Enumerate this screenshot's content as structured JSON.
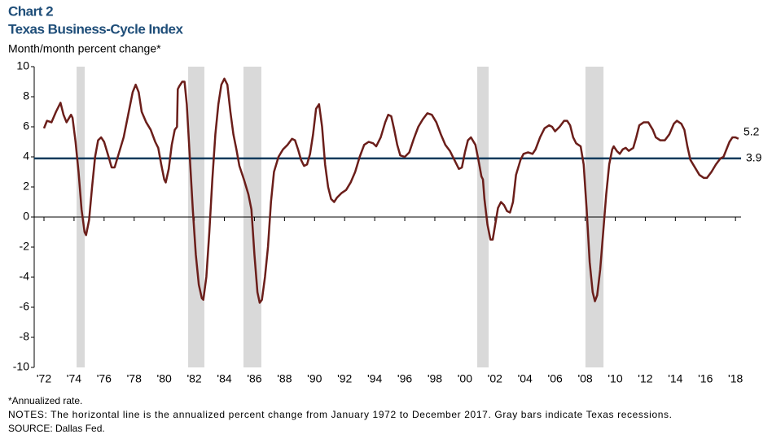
{
  "chart_data": {
    "type": "line",
    "title": "Chart 2",
    "subtitle": "Texas Business-Cycle Index",
    "y_label": "Month/month  percent change*",
    "notes": [
      "*Annualized rate.",
      "NOTES: The horizontal line is the annualized percent change from January 1972 to December 2017. Gray bars indicate Texas recessions.",
      "SOURCE: Dallas Fed."
    ],
    "xlim": [
      1971.35,
      2018.37
    ],
    "ylim": [
      -10,
      10
    ],
    "yticks": [
      -10,
      -8,
      -6,
      -4,
      -2,
      0,
      2,
      4,
      6,
      8,
      10
    ],
    "xticks": [
      {
        "value": 1972,
        "label": "'72"
      },
      {
        "value": 1974,
        "label": "'74"
      },
      {
        "value": 1976,
        "label": "'76"
      },
      {
        "value": 1978,
        "label": "'78"
      },
      {
        "value": 1980,
        "label": "'80"
      },
      {
        "value": 1982,
        "label": "'82"
      },
      {
        "value": 1984,
        "label": "'84"
      },
      {
        "value": 1986,
        "label": "'86"
      },
      {
        "value": 1988,
        "label": "'88"
      },
      {
        "value": 1990,
        "label": "'90"
      },
      {
        "value": 1992,
        "label": "'92"
      },
      {
        "value": 1994,
        "label": "'94"
      },
      {
        "value": 1996,
        "label": "'96"
      },
      {
        "value": 1998,
        "label": "'98"
      },
      {
        "value": 2000,
        "label": "'00"
      },
      {
        "value": 2002,
        "label": "'02"
      },
      {
        "value": 2004,
        "label": "'04"
      },
      {
        "value": 2006,
        "label": "'06"
      },
      {
        "value": 2008,
        "label": "'08"
      },
      {
        "value": 2010,
        "label": "'10"
      },
      {
        "value": 2012,
        "label": "'12"
      },
      {
        "value": 2014,
        "label": "'14"
      },
      {
        "value": 2016,
        "label": "'16"
      },
      {
        "value": 2018,
        "label": "'18"
      }
    ],
    "recessions": [
      [
        1974.17,
        1974.71
      ],
      [
        1981.59,
        1982.67
      ],
      [
        1985.27,
        1986.46
      ],
      [
        2000.82,
        2001.58
      ],
      [
        2008.02,
        2009.22
      ]
    ],
    "recession_color": "#d9d9d9",
    "reference_line": {
      "value": 3.9,
      "color": "#0d3a5c"
    },
    "x": [
      1972.0,
      1972.2,
      1972.5,
      1972.8,
      1973.1,
      1973.3,
      1973.5,
      1973.8,
      1973.9,
      1974.1,
      1974.3,
      1974.5,
      1974.7,
      1974.8,
      1975.0,
      1975.2,
      1975.4,
      1975.6,
      1975.8,
      1976.0,
      1976.3,
      1976.5,
      1976.7,
      1977.0,
      1977.3,
      1977.6,
      1977.9,
      1978.1,
      1978.3,
      1978.5,
      1978.8,
      1979.1,
      1979.4,
      1979.6,
      1979.8,
      1980.0,
      1980.1,
      1980.3,
      1980.5,
      1980.7,
      1980.85,
      1980.9,
      1981.0,
      1981.2,
      1981.35,
      1981.5,
      1981.7,
      1981.9,
      1982.1,
      1982.3,
      1982.5,
      1982.6,
      1982.8,
      1983.0,
      1983.2,
      1983.4,
      1983.6,
      1983.8,
      1984.0,
      1984.2,
      1984.4,
      1984.6,
      1984.8,
      1985.0,
      1985.3,
      1985.6,
      1985.8,
      1986.0,
      1986.2,
      1986.35,
      1986.5,
      1986.7,
      1986.9,
      1987.1,
      1987.3,
      1987.6,
      1987.9,
      1988.2,
      1988.5,
      1988.7,
      1988.9,
      1989.1,
      1989.3,
      1989.5,
      1989.7,
      1989.9,
      1990.1,
      1990.3,
      1990.5,
      1990.7,
      1990.9,
      1991.1,
      1991.3,
      1991.5,
      1991.8,
      1992.1,
      1992.4,
      1992.7,
      1993.0,
      1993.3,
      1993.6,
      1993.9,
      1994.1,
      1994.4,
      1994.7,
      1994.9,
      1995.1,
      1995.3,
      1995.5,
      1995.7,
      1996.0,
      1996.3,
      1996.6,
      1996.9,
      1997.2,
      1997.5,
      1997.8,
      1998.1,
      1998.4,
      1998.7,
      1999.0,
      1999.3,
      1999.6,
      1999.8,
      2000.0,
      2000.2,
      2000.4,
      2000.7,
      2000.9,
      2001.1,
      2001.2,
      2001.3,
      2001.5,
      2001.7,
      2001.85,
      2002.0,
      2002.2,
      2002.4,
      2002.6,
      2002.8,
      2003.0,
      2003.2,
      2003.4,
      2003.7,
      2003.9,
      2004.2,
      2004.5,
      2004.7,
      2005.0,
      2005.3,
      2005.6,
      2005.8,
      2006.0,
      2006.3,
      2006.6,
      2006.8,
      2007.0,
      2007.2,
      2007.4,
      2007.7,
      2007.9,
      2008.1,
      2008.3,
      2008.5,
      2008.65,
      2008.8,
      2009.0,
      2009.2,
      2009.4,
      2009.6,
      2009.8,
      2009.9,
      2010.1,
      2010.3,
      2010.5,
      2010.7,
      2010.9,
      2011.2,
      2011.4,
      2011.6,
      2011.9,
      2012.2,
      2012.5,
      2012.7,
      2013.0,
      2013.3,
      2013.6,
      2013.9,
      2014.1,
      2014.4,
      2014.6,
      2014.8,
      2015.0,
      2015.3,
      2015.6,
      2015.9,
      2016.1,
      2016.4,
      2016.7,
      2017.0,
      2017.2,
      2017.4,
      2017.6,
      2017.8,
      2018.0,
      2018.2
    ],
    "series": [
      {
        "name": "Texas Business-Cycle Index",
        "color": "#6b1e1a",
        "values": [
          5.9,
          6.4,
          6.3,
          7.0,
          7.6,
          6.8,
          6.3,
          6.8,
          6.6,
          5.0,
          3.0,
          0.5,
          -1.0,
          -1.2,
          -0.2,
          2.0,
          4.0,
          5.1,
          5.3,
          5.0,
          4.0,
          3.3,
          3.3,
          4.3,
          5.3,
          6.8,
          8.3,
          8.8,
          8.3,
          7.0,
          6.3,
          5.8,
          5.0,
          4.6,
          3.5,
          2.5,
          2.3,
          3.2,
          4.8,
          5.8,
          6.0,
          8.5,
          8.7,
          9.0,
          9.0,
          7.5,
          4.0,
          0.5,
          -2.5,
          -4.5,
          -5.4,
          -5.5,
          -4.0,
          -1.0,
          2.5,
          5.5,
          7.5,
          8.8,
          9.2,
          8.8,
          7.0,
          5.5,
          4.5,
          3.4,
          2.5,
          1.5,
          0.5,
          -2.5,
          -5.0,
          -5.7,
          -5.5,
          -4.0,
          -2.0,
          1.0,
          3.0,
          4.0,
          4.5,
          4.8,
          5.2,
          5.1,
          4.5,
          3.8,
          3.4,
          3.5,
          4.2,
          5.5,
          7.2,
          7.5,
          6.0,
          3.5,
          2.0,
          1.2,
          1.0,
          1.3,
          1.6,
          1.8,
          2.3,
          3.0,
          4.0,
          4.8,
          5.0,
          4.9,
          4.7,
          5.3,
          6.3,
          6.8,
          6.7,
          5.8,
          4.8,
          4.1,
          4.0,
          4.3,
          5.2,
          6.0,
          6.5,
          6.9,
          6.8,
          6.3,
          5.5,
          4.8,
          4.4,
          3.8,
          3.2,
          3.3,
          4.3,
          5.1,
          5.3,
          4.8,
          3.8,
          2.7,
          2.5,
          1.2,
          -0.5,
          -1.5,
          -1.5,
          -0.6,
          0.6,
          1.0,
          0.8,
          0.4,
          0.3,
          1.0,
          2.8,
          3.8,
          4.2,
          4.3,
          4.2,
          4.5,
          5.3,
          5.9,
          6.1,
          6.0,
          5.7,
          6.0,
          6.4,
          6.4,
          6.1,
          5.3,
          4.9,
          4.7,
          3.5,
          0.5,
          -3.0,
          -5.0,
          -5.6,
          -5.2,
          -3.5,
          -1.0,
          1.5,
          3.5,
          4.5,
          4.7,
          4.4,
          4.2,
          4.5,
          4.6,
          4.4,
          4.6,
          5.3,
          6.1,
          6.3,
          6.3,
          5.8,
          5.3,
          5.1,
          5.1,
          5.5,
          6.2,
          6.4,
          6.2,
          5.8,
          4.7,
          3.8,
          3.3,
          2.8,
          2.6,
          2.6,
          3.0,
          3.5,
          3.9,
          4.0,
          4.5,
          5.0,
          5.3,
          5.3,
          5.2
        ]
      }
    ]
  }
}
